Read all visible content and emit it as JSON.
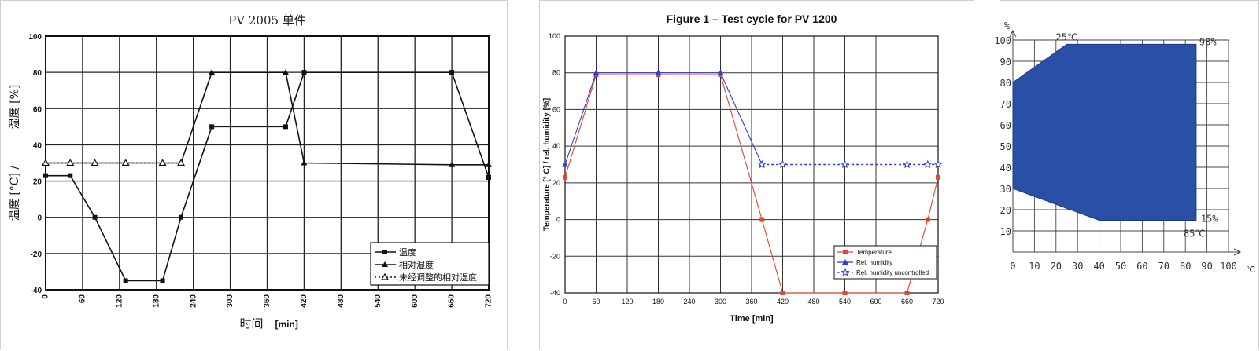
{
  "chart_data": [
    {
      "type": "line",
      "title": "PV 2005 单件",
      "xlabel": "时间",
      "xlabel_unit": "[min]",
      "ylabel_top": "湿度  [%]",
      "ylabel_bottom": "温度  [°C] /",
      "xlim": [
        0,
        720
      ],
      "ylim": [
        -40,
        100
      ],
      "x_ticks": [
        "0",
        "60",
        "120",
        "180",
        "240",
        "300",
        "360",
        "420",
        "480",
        "540",
        "600",
        "660",
        "720"
      ],
      "y_ticks": [
        "100",
        "80",
        "60",
        "40",
        "20",
        "0",
        "-20",
        "-40"
      ],
      "grid": true,
      "legend_position": "bottom-right",
      "series": [
        {
          "name": "温度",
          "marker": "square",
          "style": "solid",
          "x": [
            0,
            40,
            80,
            130,
            190,
            220,
            270,
            390,
            420,
            660,
            720
          ],
          "y": [
            23,
            23,
            0,
            -35,
            -35,
            0,
            50,
            50,
            80,
            80,
            22
          ]
        },
        {
          "name": "相对湿度",
          "marker": "triangle",
          "style": "solid",
          "x": [
            0,
            40,
            80,
            130,
            190,
            220,
            270,
            390,
            420,
            660,
            720
          ],
          "y": [
            30,
            30,
            30,
            30,
            30,
            30,
            80,
            80,
            30,
            29,
            29
          ]
        },
        {
          "name": "未经调整的相对湿度",
          "marker": "triangle-open",
          "style": "dotted",
          "x": [
            0,
            40,
            80,
            130,
            190,
            220
          ],
          "y": [
            30,
            30,
            30,
            30,
            30,
            30
          ]
        }
      ]
    },
    {
      "type": "line",
      "title": "Figure 1 – Test cycle for PV 1200",
      "xlabel": "Time [min]",
      "ylabel": "Temperature [° C] / rel. humidity [%]",
      "xlim": [
        0,
        720
      ],
      "ylim": [
        -40,
        100
      ],
      "x_ticks": [
        "0",
        "60",
        "120",
        "180",
        "240",
        "300",
        "360",
        "420",
        "480",
        "540",
        "600",
        "660",
        "720"
      ],
      "y_ticks": [
        "100",
        "80",
        "60",
        "40",
        "20",
        "0",
        "-20",
        "-40"
      ],
      "grid": true,
      "legend_position": "bottom-right",
      "series": [
        {
          "name": "Temperature",
          "color": "#e8432d",
          "marker": "square",
          "style": "solid",
          "x": [
            0,
            60,
            180,
            300,
            380,
            420,
            540,
            660,
            700,
            720
          ],
          "y": [
            23,
            79,
            79,
            79,
            0,
            -40,
            -40,
            -40,
            0,
            23
          ]
        },
        {
          "name": "Rel. humidity",
          "color": "#2d3fcf",
          "marker": "triangle",
          "style": "solid",
          "x": [
            0,
            60,
            180,
            300,
            380
          ],
          "y": [
            30,
            80,
            80,
            80,
            30
          ]
        },
        {
          "name": "Rel. humidity uncontrolled",
          "color": "#2d3fcf",
          "marker": "star",
          "style": "dotted",
          "x": [
            380,
            420,
            540,
            660,
            700,
            720
          ],
          "y": [
            30,
            30,
            30,
            30,
            30,
            30
          ]
        }
      ]
    },
    {
      "type": "area",
      "title": "",
      "xlabel": "℃",
      "ylabel": "%",
      "xlim": [
        0,
        100
      ],
      "ylim": [
        0,
        100
      ],
      "x_ticks": [
        "0",
        "10",
        "20",
        "30",
        "40",
        "50",
        "60",
        "70",
        "80",
        "90",
        "100"
      ],
      "y_ticks": [
        "10",
        "20",
        "30",
        "40",
        "50",
        "60",
        "70",
        "80",
        "90",
        "100"
      ],
      "grid": true,
      "fill_color": "#2a50a6",
      "polygon": {
        "x": [
          0,
          0,
          25,
          85,
          85,
          40,
          0
        ],
        "y": [
          30,
          80,
          98,
          98,
          15,
          15,
          30
        ]
      },
      "annotations": [
        "25℃",
        "98%",
        "15%",
        "85℃"
      ]
    }
  ]
}
